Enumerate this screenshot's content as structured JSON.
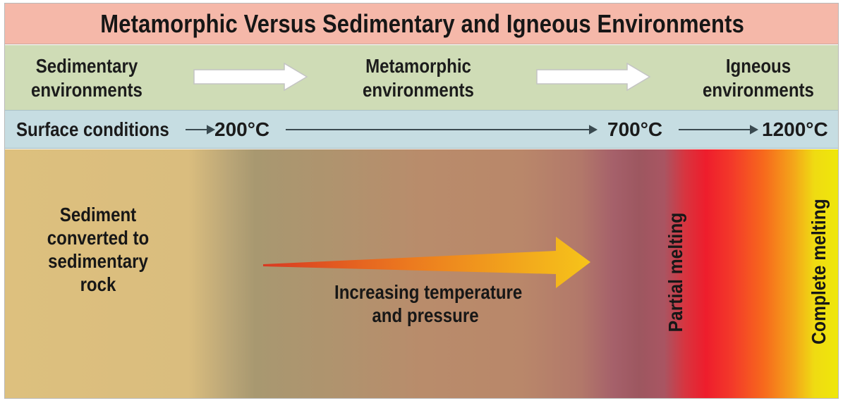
{
  "title": "Metamorphic Versus Sedimentary and Igneous Environments",
  "environments": {
    "sedimentary": [
      "Sedimentary",
      "environments"
    ],
    "metamorphic": [
      "Metamorphic",
      "environments"
    ],
    "igneous": [
      "Igneous",
      "environments"
    ]
  },
  "conditions": {
    "surface": "Surface conditions",
    "t1": "200°C",
    "t2": "700°C",
    "t3": "1200°C"
  },
  "field": {
    "sediment": [
      "Sediment",
      "converted to",
      "sedimentary",
      "rock"
    ],
    "increasing": [
      "Increasing temperature",
      "and pressure"
    ],
    "partial": "Partial melting",
    "complete": "Complete melting"
  },
  "colors": {
    "title_bg": "#f5b8a9",
    "env_bg": "#cfdcb6",
    "cond_bg": "#c6dde2",
    "sedimentary_zone": "#ddc07e",
    "metamorphic_zone": "#b9876a",
    "partial_melt_zone": "#ee1d2c",
    "complete_melt_zone": "#efe80a"
  }
}
